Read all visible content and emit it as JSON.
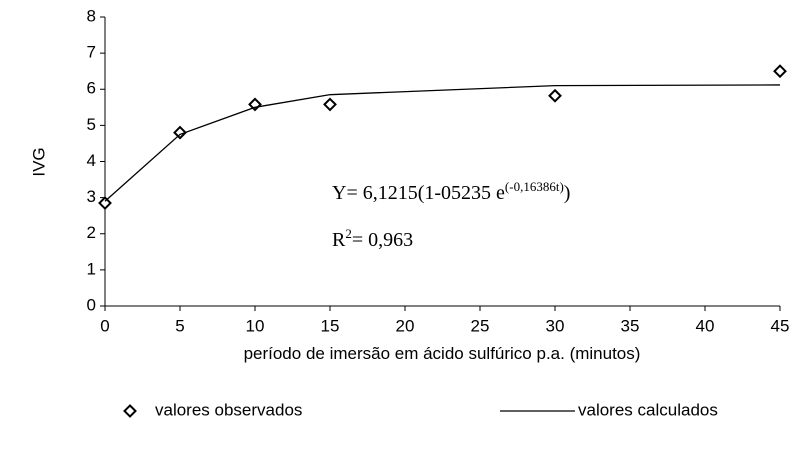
{
  "chart_data": {
    "type": "scatter",
    "x_label": "período de imersão em ácido sulfúrico p.a. (minutos)",
    "y_label": "IVG",
    "x": [
      0,
      5,
      10,
      15,
      30,
      45
    ],
    "series": [
      {
        "name": "valores observados",
        "color": "#000000",
        "style": "markers",
        "values": [
          2.85,
          4.8,
          5.58,
          5.58,
          5.82,
          6.5
        ]
      },
      {
        "name": "valores calculados",
        "color": "#000000",
        "style": "line",
        "values": [
          2.9,
          4.75,
          5.5,
          5.85,
          6.1,
          6.12
        ]
      }
    ],
    "xlim": [
      0,
      45
    ],
    "xticks": [
      0,
      5,
      10,
      15,
      20,
      25,
      30,
      35,
      40,
      45
    ],
    "ylim": [
      0,
      8
    ],
    "yticks": [
      0,
      1,
      2,
      3,
      4,
      5,
      6,
      7,
      8
    ],
    "annotations": [
      {
        "text": "Y= 6,1215(1-05235 e",
        "sup": "(-0,16386t)",
        "after": ")"
      },
      {
        "text": "R",
        "sup": "2",
        "after": "= 0,963"
      }
    ]
  }
}
